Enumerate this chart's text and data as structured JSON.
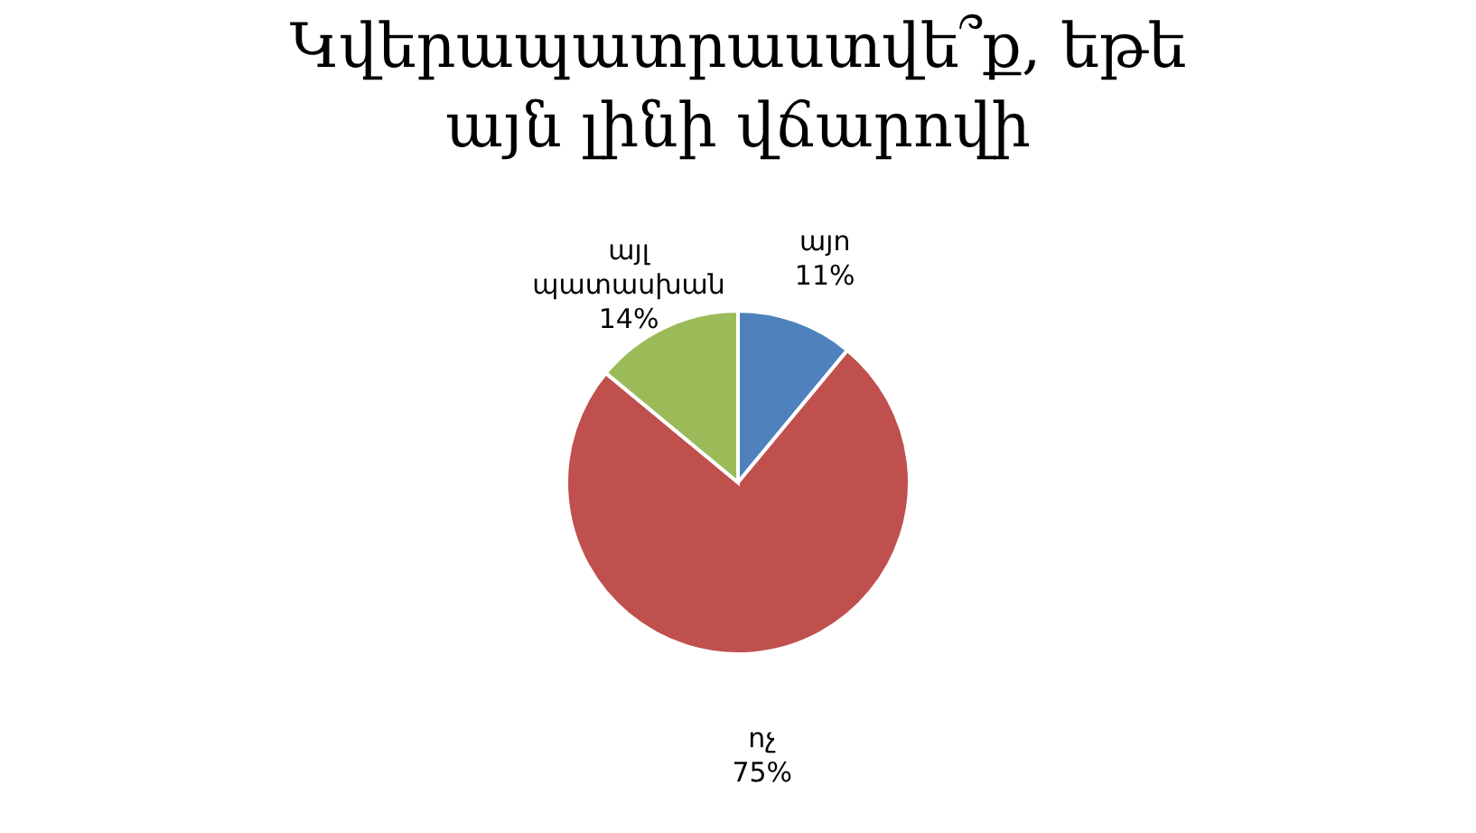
{
  "chart_data": {
    "type": "pie",
    "title": "Կվերապատրաստվե՞ք, եթե այն լինի վճարովի",
    "categories": [
      "այո",
      "ոչ",
      "այլ պատասխան"
    ],
    "values": [
      11,
      75,
      14
    ],
    "colors": [
      "#4f81bd",
      "#c0504d",
      "#9bbb59"
    ],
    "value_labels": [
      "11%",
      "75%",
      "14%"
    ],
    "legend": false
  }
}
